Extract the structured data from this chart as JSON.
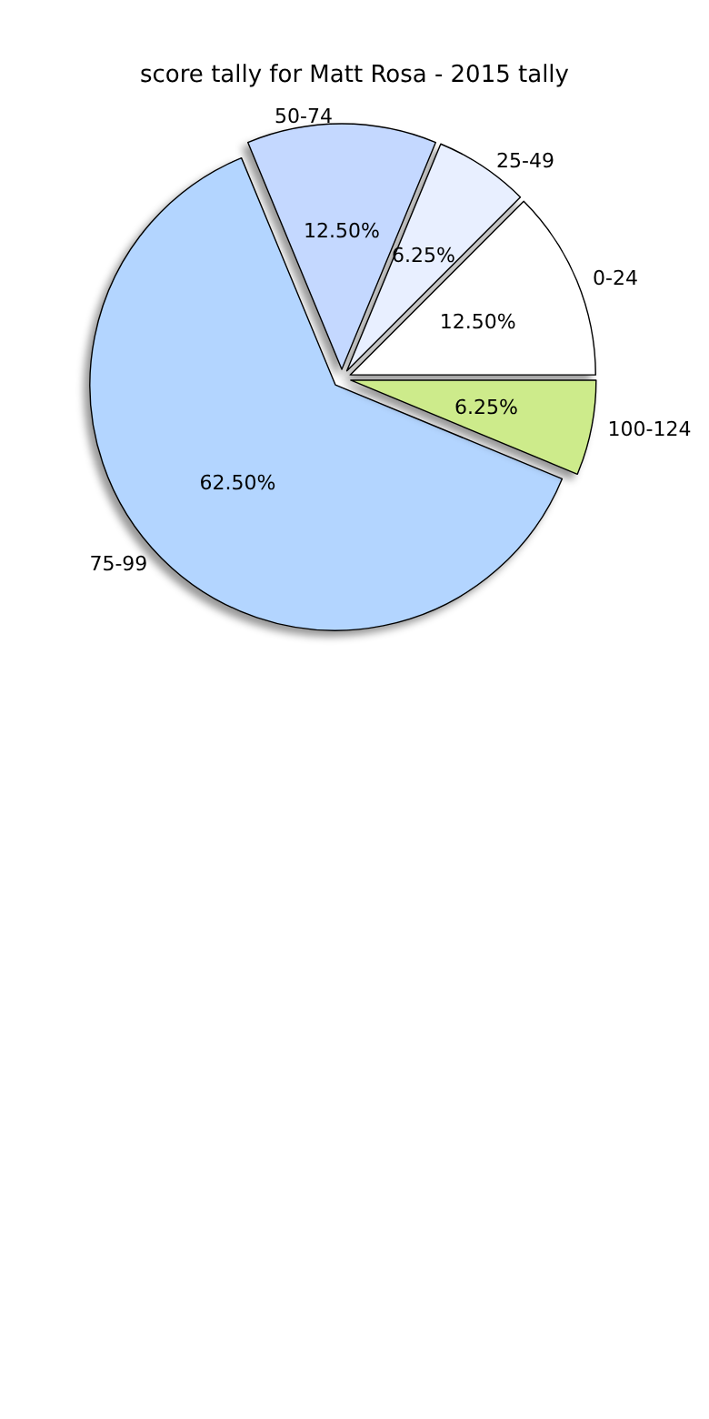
{
  "chart_data": {
    "type": "pie",
    "title": "score tally for Matt Rosa - 2015 tally",
    "categories": [
      "0-24",
      "25-49",
      "50-74",
      "75-99",
      "100-124"
    ],
    "values": [
      12.5,
      6.25,
      12.5,
      62.5,
      6.25
    ],
    "value_labels": [
      "12.50%",
      "6.25%",
      "12.50%",
      "62.50%",
      "6.25%"
    ],
    "colors": [
      "#ffffff",
      "#e8efff",
      "#c4d8ff",
      "#b3d5ff",
      "#cdeb8b"
    ],
    "legend": false
  }
}
